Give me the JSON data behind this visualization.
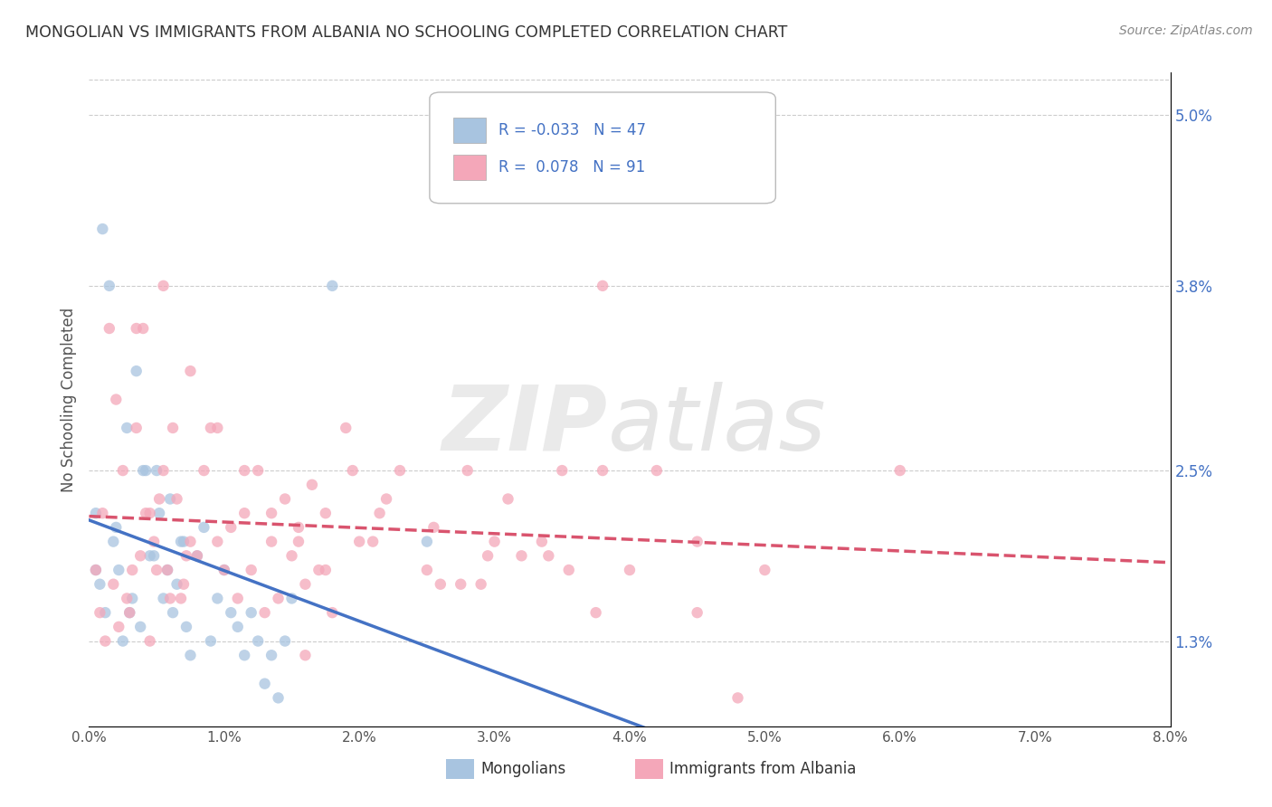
{
  "title": "MONGOLIAN VS IMMIGRANTS FROM ALBANIA NO SCHOOLING COMPLETED CORRELATION CHART",
  "source": "Source: ZipAtlas.com",
  "ylabel": "No Schooling Completed",
  "right_yticks": [
    1.3,
    2.5,
    3.8,
    5.0
  ],
  "right_ytick_labels": [
    "1.3%",
    "2.5%",
    "3.8%",
    "5.0%"
  ],
  "xmin": 0.0,
  "xmax": 8.0,
  "ymin": 0.7,
  "ymax": 5.3,
  "mongolian_color": "#a8c4e0",
  "albania_color": "#f4a7b9",
  "mongolian_line_color": "#4472c4",
  "albania_line_color": "#d9546e",
  "mongolian_R": -0.033,
  "mongolian_N": 47,
  "albania_R": 0.078,
  "albania_N": 91,
  "legend_label1": "Mongolians",
  "legend_label2": "Immigrants from Albania",
  "mongolian_scatter_x": [
    0.05,
    0.08,
    0.1,
    0.12,
    0.15,
    0.18,
    0.2,
    0.22,
    0.25,
    0.28,
    0.3,
    0.32,
    0.35,
    0.38,
    0.4,
    0.42,
    0.45,
    0.48,
    0.5,
    0.52,
    0.55,
    0.58,
    0.6,
    0.62,
    0.65,
    0.68,
    0.7,
    0.72,
    0.75,
    0.8,
    0.85,
    0.9,
    0.95,
    1.0,
    1.05,
    1.1,
    1.15,
    1.2,
    1.25,
    1.3,
    1.35,
    1.4,
    1.45,
    1.5,
    1.8,
    2.5,
    0.05
  ],
  "mongolian_scatter_y": [
    2.2,
    1.7,
    4.2,
    1.5,
    3.8,
    2.0,
    2.1,
    1.8,
    1.3,
    2.8,
    1.5,
    1.6,
    3.2,
    1.4,
    2.5,
    2.5,
    1.9,
    1.9,
    2.5,
    2.2,
    1.6,
    1.8,
    2.3,
    1.5,
    1.7,
    2.0,
    2.0,
    1.4,
    1.2,
    1.9,
    2.1,
    1.3,
    1.6,
    1.8,
    1.5,
    1.4,
    1.2,
    1.5,
    1.3,
    1.0,
    1.2,
    0.9,
    1.3,
    1.6,
    3.8,
    2.0,
    1.8
  ],
  "albania_scatter_x": [
    0.05,
    0.08,
    0.1,
    0.12,
    0.15,
    0.18,
    0.2,
    0.22,
    0.25,
    0.28,
    0.3,
    0.32,
    0.35,
    0.38,
    0.4,
    0.42,
    0.45,
    0.48,
    0.5,
    0.52,
    0.55,
    0.58,
    0.6,
    0.62,
    0.65,
    0.68,
    0.7,
    0.72,
    0.75,
    0.8,
    0.85,
    0.9,
    0.95,
    1.0,
    1.05,
    1.1,
    1.15,
    1.2,
    1.25,
    1.3,
    1.35,
    1.4,
    1.45,
    1.5,
    1.55,
    1.6,
    1.65,
    1.7,
    1.75,
    1.8,
    1.9,
    2.0,
    2.1,
    2.2,
    2.3,
    2.5,
    2.6,
    2.8,
    2.9,
    3.0,
    3.1,
    3.2,
    3.4,
    3.5,
    3.8,
    4.0,
    4.2,
    0.35,
    0.55,
    0.75,
    0.95,
    1.15,
    1.35,
    1.55,
    1.75,
    1.95,
    2.15,
    2.55,
    2.75,
    2.95,
    3.35,
    3.55,
    3.75,
    4.5,
    5.0,
    6.0,
    1.6,
    4.5,
    4.8,
    3.8,
    0.45
  ],
  "albania_scatter_y": [
    1.8,
    1.5,
    2.2,
    1.3,
    3.5,
    1.7,
    3.0,
    1.4,
    2.5,
    1.6,
    1.5,
    1.8,
    2.8,
    1.9,
    3.5,
    2.2,
    2.2,
    2.0,
    1.8,
    2.3,
    2.5,
    1.8,
    1.6,
    2.8,
    2.3,
    1.6,
    1.7,
    1.9,
    2.0,
    1.9,
    2.5,
    2.8,
    2.0,
    1.8,
    2.1,
    1.6,
    2.2,
    1.8,
    2.5,
    1.5,
    2.0,
    1.6,
    2.3,
    1.9,
    2.1,
    1.7,
    2.4,
    1.8,
    2.2,
    1.5,
    2.8,
    2.0,
    2.0,
    2.3,
    2.5,
    1.8,
    1.7,
    2.5,
    1.7,
    2.0,
    2.3,
    1.9,
    1.9,
    2.5,
    2.5,
    1.8,
    2.5,
    3.5,
    3.8,
    3.2,
    2.8,
    2.5,
    2.2,
    2.0,
    1.8,
    2.5,
    2.2,
    2.1,
    1.7,
    1.9,
    2.0,
    1.8,
    1.5,
    1.5,
    1.8,
    2.5,
    1.2,
    2.0,
    0.9,
    3.8,
    1.3
  ]
}
